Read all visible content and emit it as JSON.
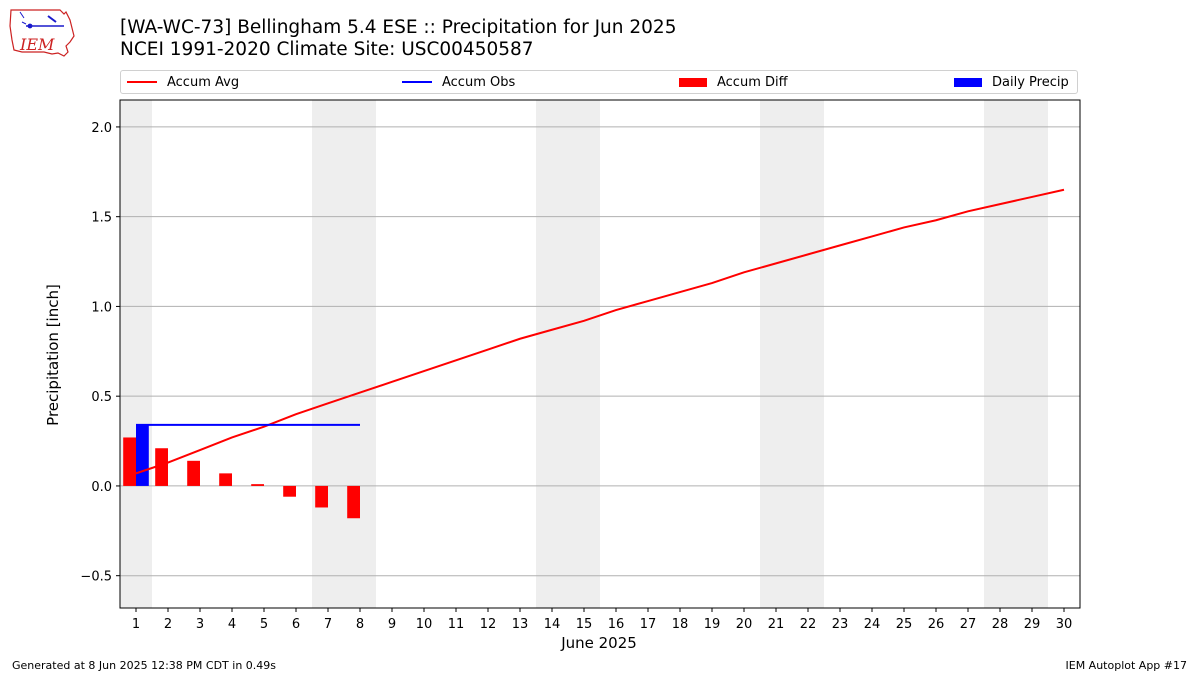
{
  "header": {
    "title_line1": "[WA-WC-73] Bellingham 5.4 ESE :: Precipitation for Jun 2025",
    "title_line2": "NCEI 1991-2020 Climate Site: USC00450587",
    "logo_text": "IEM"
  },
  "legend": {
    "accum_avg": "Accum Avg",
    "accum_obs": "Accum Obs",
    "accum_diff": "Accum Diff",
    "daily_precip": "Daily Precip"
  },
  "footer": {
    "left": "Generated at 8 Jun 2025 12:38 PM CDT in 0.49s",
    "right": "IEM Autoplot App #17"
  },
  "colors": {
    "avg": "#ff0000",
    "obs": "#0000ff",
    "diff": "#ff0000",
    "daily": "#0000ff",
    "weekend": "#eeeeee",
    "grid": "#b0b0b0"
  },
  "chart_data": {
    "type": "line",
    "xlabel": "June 2025",
    "ylabel": "Precipitation [inch]",
    "xlim": [
      0.5,
      30.5
    ],
    "ylim": [
      -0.68,
      2.15
    ],
    "yticks": [
      -0.5,
      0.0,
      0.5,
      1.0,
      1.5,
      2.0
    ],
    "ytick_labels": [
      "−0.5",
      "0.0",
      "0.5",
      "1.0",
      "1.5",
      "2.0"
    ],
    "x": [
      1,
      2,
      3,
      4,
      5,
      6,
      7,
      8,
      9,
      10,
      11,
      12,
      13,
      14,
      15,
      16,
      17,
      18,
      19,
      20,
      21,
      22,
      23,
      24,
      25,
      26,
      27,
      28,
      29,
      30
    ],
    "grid": "horizontal",
    "legend_position": "top",
    "weekend_days": [
      1,
      7,
      8,
      14,
      15,
      21,
      22,
      28,
      29
    ],
    "series": [
      {
        "name": "Accum Avg",
        "kind": "line",
        "values": [
          0.07,
          0.13,
          0.2,
          0.27,
          0.33,
          0.4,
          0.46,
          0.52,
          0.58,
          0.64,
          0.7,
          0.76,
          0.82,
          0.87,
          0.92,
          0.98,
          1.03,
          1.08,
          1.13,
          1.19,
          1.24,
          1.29,
          1.34,
          1.39,
          1.44,
          1.48,
          1.53,
          1.57,
          1.61,
          1.65
        ]
      },
      {
        "name": "Accum Obs",
        "kind": "line",
        "x": [
          1,
          8
        ],
        "values": [
          0.34,
          0.34
        ]
      },
      {
        "name": "Accum Diff",
        "kind": "bar",
        "x": [
          1,
          2,
          3,
          4,
          5,
          6,
          7,
          8
        ],
        "values": [
          0.27,
          0.21,
          0.14,
          0.07,
          0.01,
          -0.06,
          -0.12,
          -0.18
        ]
      },
      {
        "name": "Daily Precip",
        "kind": "bar",
        "x": [
          1,
          2,
          3,
          4,
          5,
          6,
          7,
          8
        ],
        "values": [
          0.34,
          0,
          0,
          0,
          0,
          0,
          0,
          0
        ]
      }
    ]
  }
}
